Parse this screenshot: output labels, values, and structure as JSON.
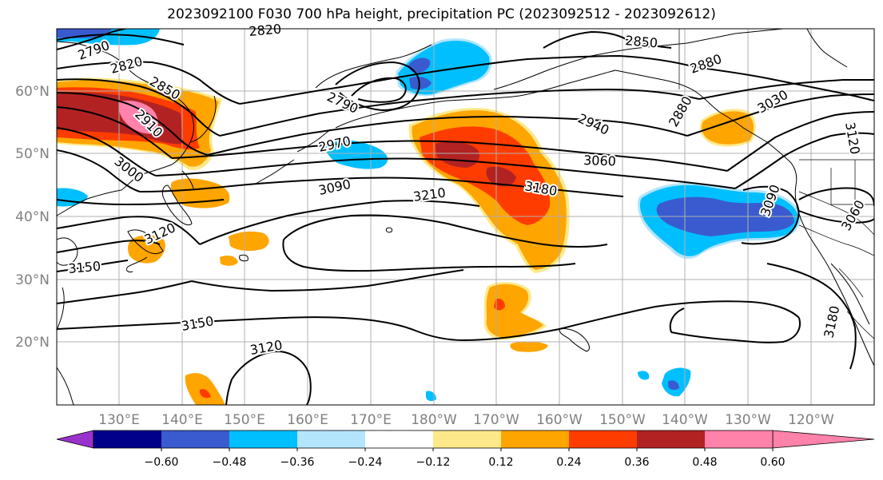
{
  "title": "2023092100 F030 700 hPa height, precipitation PC (2023092512 - 2023092612)",
  "map": {
    "lat_ticks": [
      "60°N",
      "50°N",
      "40°N",
      "30°N",
      "20°N"
    ],
    "lon_ticks": [
      "130°E",
      "140°E",
      "150°E",
      "160°E",
      "170°E",
      "180°W",
      "170°W",
      "160°W",
      "150°W",
      "140°W",
      "130°W",
      "120°W"
    ],
    "contour_labels": [
      "2790",
      "2820",
      "2820",
      "2850",
      "2850",
      "2880",
      "2880",
      "2910",
      "2790",
      "2940",
      "3030",
      "3120",
      "2970",
      "3000",
      "3060",
      "3090",
      "3090",
      "3210",
      "3180",
      "3060",
      "3120",
      "3150",
      "3150",
      "3120",
      "3180"
    ],
    "shading_colors": {
      "positive_light": "#fee98a",
      "positive_orange": "#ffa500",
      "positive_red": "#ff3c00",
      "positive_dark": "#b22222",
      "positive_pink": "#ff82ab",
      "negative_sky": "#00bfff",
      "negative_royal": "#3a5bcf",
      "negative_light": "#b3e5fc"
    }
  },
  "colorbar": {
    "colors": [
      "#9932cc",
      "#00008b",
      "#3a5bcf",
      "#00bfff",
      "#b3e5fc",
      "#ffffff",
      "#fee98a",
      "#ffa500",
      "#ff3c00",
      "#b22222",
      "#ff82ab"
    ],
    "ticks": [
      "−0.60",
      "−0.48",
      "−0.36",
      "−0.24",
      "−0.12",
      "0.12",
      "0.24",
      "0.36",
      "0.48",
      "0.60"
    ]
  }
}
